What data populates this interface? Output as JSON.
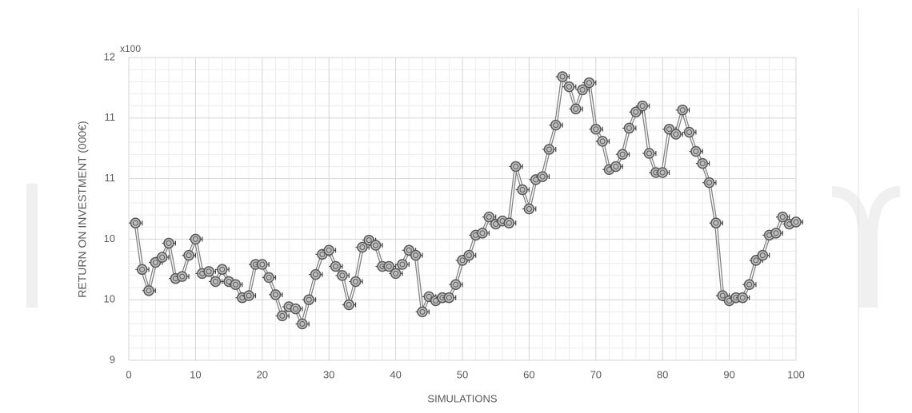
{
  "chart_data": {
    "type": "line",
    "y_multiplier_label": "x100",
    "y_label": "RETURN ON INVESTMENT  (000€)",
    "x_label": "SIMULATIONS",
    "x": [
      1,
      2,
      3,
      4,
      5,
      6,
      7,
      8,
      9,
      10,
      11,
      12,
      13,
      14,
      15,
      16,
      17,
      18,
      19,
      20,
      21,
      22,
      23,
      24,
      25,
      26,
      27,
      28,
      29,
      30,
      31,
      32,
      33,
      34,
      35,
      36,
      37,
      38,
      39,
      40,
      41,
      42,
      43,
      44,
      45,
      46,
      47,
      48,
      49,
      50,
      51,
      52,
      53,
      54,
      55,
      56,
      57,
      58,
      59,
      60,
      61,
      62,
      63,
      64,
      65,
      66,
      67,
      68,
      69,
      70,
      71,
      72,
      73,
      74,
      75,
      76,
      77,
      78,
      79,
      80,
      81,
      82,
      83,
      84,
      85,
      86,
      87,
      88,
      89,
      90,
      91,
      92,
      93,
      94,
      95,
      96,
      97,
      98,
      99,
      100
    ],
    "series": [
      {
        "name": "Return on investment",
        "color": "#7f7f7f",
        "values": [
          10.36,
          9.9,
          9.69,
          9.97,
          10.02,
          10.16,
          9.81,
          9.83,
          10.04,
          10.2,
          9.86,
          9.88,
          9.78,
          9.9,
          9.78,
          9.75,
          9.62,
          9.64,
          9.95,
          9.95,
          9.82,
          9.65,
          9.44,
          9.53,
          9.51,
          9.36,
          9.6,
          9.85,
          10.05,
          10.09,
          9.93,
          9.84,
          9.55,
          9.78,
          10.12,
          10.19,
          10.14,
          9.93,
          9.93,
          9.86,
          9.95,
          10.09,
          10.04,
          9.48,
          9.63,
          9.59,
          9.62,
          9.62,
          9.75,
          9.99,
          10.04,
          10.24,
          10.26,
          10.42,
          10.35,
          10.38,
          10.36,
          10.92,
          10.69,
          10.5,
          10.79,
          10.82,
          11.09,
          11.33,
          11.81,
          11.71,
          11.49,
          11.68,
          11.75,
          11.29,
          11.17,
          10.89,
          10.92,
          11.04,
          11.3,
          11.46,
          11.52,
          11.05,
          10.86,
          10.86,
          11.29,
          11.24,
          11.48,
          11.26,
          11.07,
          10.95,
          10.76,
          10.36,
          9.64,
          9.59,
          9.62,
          9.62,
          9.75,
          9.99,
          10.04,
          10.24,
          10.26,
          10.42,
          10.35,
          10.37
        ]
      }
    ],
    "xerr": 1,
    "xlim": [
      0,
      100
    ],
    "xticks": [
      0,
      10,
      20,
      30,
      40,
      50,
      60,
      70,
      80,
      90,
      100
    ],
    "ylim": [
      9,
      12
    ],
    "yticks": [
      9,
      {
        "value": 9.6,
        "label": "10"
      },
      {
        "value": 10.2,
        "label": "10"
      },
      {
        "value": 10.8,
        "label": "11"
      },
      {
        "value": 11.4,
        "label": "11"
      },
      12
    ],
    "grid": true,
    "minor_grid": true
  }
}
